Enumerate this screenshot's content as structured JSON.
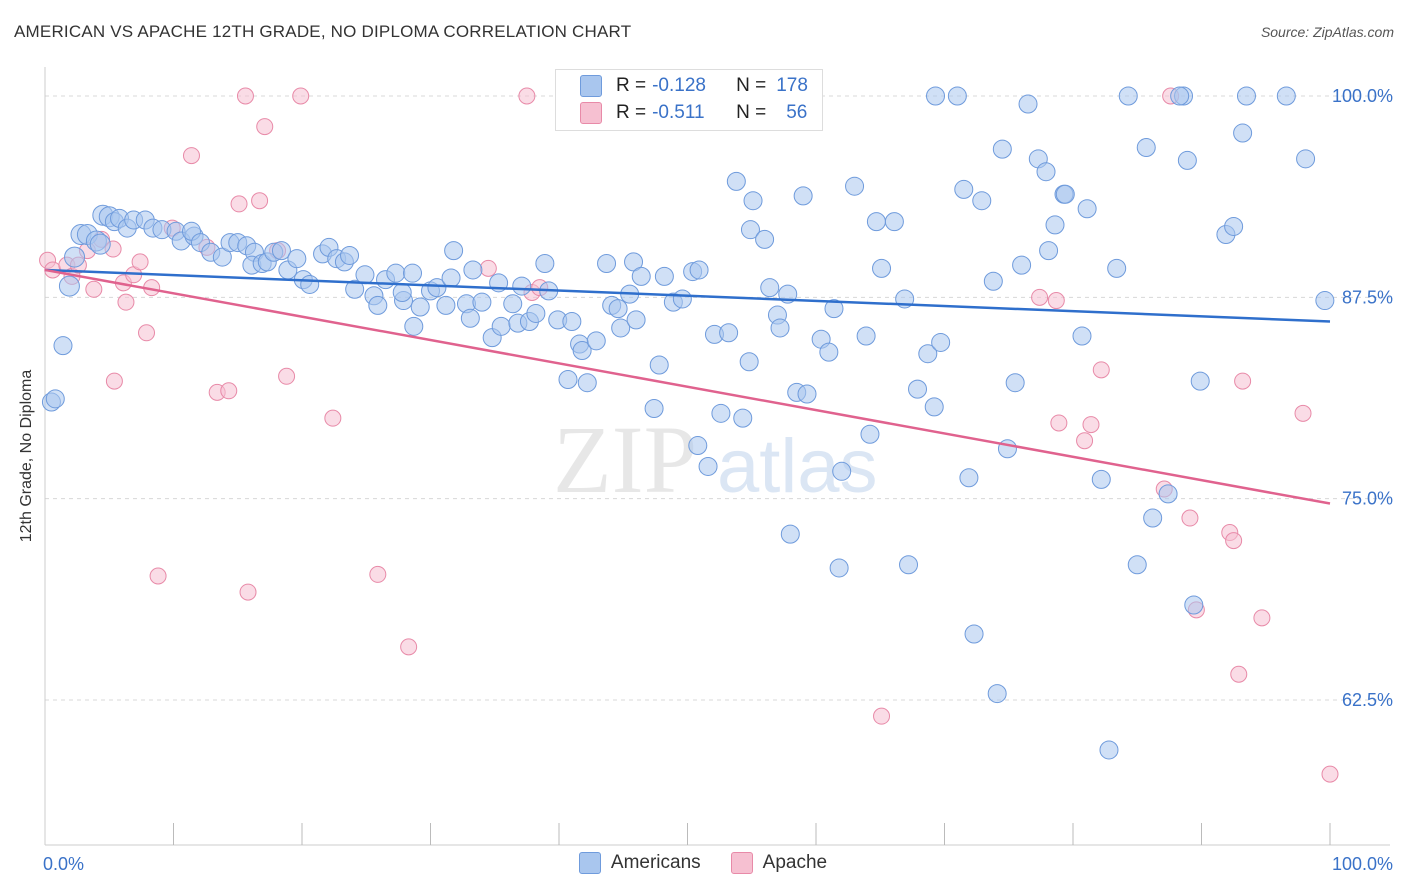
{
  "header": {
    "title": "AMERICAN VS APACHE 12TH GRADE, NO DIPLOMA CORRELATION CHART",
    "source": "Source: ZipAtlas.com"
  },
  "watermark": {
    "zip": "ZIP",
    "atlas": "atlas"
  },
  "legend": {
    "americans": {
      "r_label": "R =",
      "r_value": "-0.128",
      "n_label": "N =",
      "n_value": "178"
    },
    "apache": {
      "r_label": "R =",
      "r_value": "-0.511",
      "n_label": "N =",
      "n_value": "56"
    }
  },
  "bottom_legend": {
    "americans": "Americans",
    "apache": "Apache"
  },
  "colors": {
    "americans_fill": "#a9c6ee",
    "americans_stroke": "#6f9bdc",
    "americans_line": "#2f6fcc",
    "apache_fill": "#f6c0d1",
    "apache_stroke": "#e88aa8",
    "apache_line": "#e0628e",
    "tick_label": "#3a72c8",
    "grid": "#d8d8d8"
  },
  "chart_data": {
    "type": "scatter",
    "title": "AMERICAN VS APACHE 12TH GRADE, NO DIPLOMA CORRELATION CHART",
    "xlabel": "",
    "ylabel": "12th Grade, No Diploma",
    "xlim": [
      0,
      100
    ],
    "ylim": [
      53.5,
      101.8
    ],
    "x_tick_labels": [
      "0.0%",
      "100.0%"
    ],
    "y_ticks": [
      62.5,
      75.0,
      87.5,
      100.0
    ],
    "y_tick_labels": [
      "62.5%",
      "75.0%",
      "87.5%",
      "100.0%"
    ],
    "grid": "horizontal dashed",
    "legend_position": "top-center",
    "series": [
      {
        "name": "Americans",
        "trend": {
          "x": [
            0,
            100
          ],
          "y": [
            89.2,
            86.0
          ]
        },
        "points": [
          [
            0.5,
            81
          ],
          [
            0.8,
            81.2
          ],
          [
            1.4,
            84.5
          ],
          [
            1.9,
            88.2
          ],
          [
            2.3,
            90
          ],
          [
            2.8,
            91.4
          ],
          [
            3.3,
            91.4
          ],
          [
            4,
            91
          ],
          [
            4.3,
            90.8
          ],
          [
            4.5,
            92.6
          ],
          [
            5,
            92.5
          ],
          [
            5.4,
            92.2
          ],
          [
            5.8,
            92.4
          ],
          [
            6.4,
            91.8
          ],
          [
            6.9,
            92.3
          ],
          [
            7.8,
            92.3
          ],
          [
            8.4,
            91.8
          ],
          [
            9.1,
            91.7
          ],
          [
            10.2,
            91.6
          ],
          [
            10.6,
            91
          ],
          [
            11.6,
            91.3
          ],
          [
            11.4,
            91.6
          ],
          [
            12.1,
            90.9
          ],
          [
            12.9,
            90.3
          ],
          [
            13.8,
            90
          ],
          [
            14.4,
            90.9
          ],
          [
            15,
            90.9
          ],
          [
            15.7,
            90.7
          ],
          [
            16.3,
            90.3
          ],
          [
            16.1,
            89.5
          ],
          [
            16.9,
            89.6
          ],
          [
            17.3,
            89.7
          ],
          [
            17.8,
            90.3
          ],
          [
            18.4,
            90.4
          ],
          [
            18.9,
            89.2
          ],
          [
            19.6,
            89.9
          ],
          [
            20.1,
            88.6
          ],
          [
            20.6,
            88.3
          ],
          [
            21.6,
            90.2
          ],
          [
            22.1,
            90.6
          ],
          [
            22.7,
            89.9
          ],
          [
            23.3,
            89.7
          ],
          [
            23.7,
            90.1
          ],
          [
            24.1,
            88
          ],
          [
            24.9,
            88.9
          ],
          [
            25.6,
            87.6
          ],
          [
            25.9,
            87
          ],
          [
            26.5,
            88.6
          ],
          [
            27.3,
            89
          ],
          [
            27.9,
            87.3
          ],
          [
            27.8,
            87.8
          ],
          [
            28.6,
            89
          ],
          [
            28.7,
            85.7
          ],
          [
            29.2,
            86.9
          ],
          [
            30,
            87.9
          ],
          [
            30.5,
            88.1
          ],
          [
            31.6,
            88.7
          ],
          [
            31.2,
            87
          ],
          [
            31.8,
            90.4
          ],
          [
            32.8,
            87.1
          ],
          [
            33.3,
            89.2
          ],
          [
            33.1,
            86.2
          ],
          [
            34,
            87.2
          ],
          [
            34.8,
            85
          ],
          [
            35.3,
            88.4
          ],
          [
            35.5,
            85.7
          ],
          [
            36.4,
            87.1
          ],
          [
            36.8,
            85.9
          ],
          [
            37.1,
            88.2
          ],
          [
            37.7,
            86
          ],
          [
            38.2,
            86.5
          ],
          [
            38.9,
            89.6
          ],
          [
            39.2,
            87.9
          ],
          [
            39.9,
            86.1
          ],
          [
            40.7,
            82.4
          ],
          [
            41,
            86
          ],
          [
            41.6,
            84.6
          ],
          [
            41.8,
            84.2
          ],
          [
            42.2,
            82.2
          ],
          [
            42.9,
            84.8
          ],
          [
            43.7,
            89.6
          ],
          [
            44.1,
            87
          ],
          [
            44.6,
            86.8
          ],
          [
            44.8,
            85.6
          ],
          [
            45.5,
            87.7
          ],
          [
            45.8,
            89.7
          ],
          [
            46,
            86.1
          ],
          [
            46.4,
            88.8
          ],
          [
            47.4,
            80.6
          ],
          [
            47.8,
            83.3
          ],
          [
            48.2,
            88.8
          ],
          [
            48.9,
            87.2
          ],
          [
            49.6,
            87.4
          ],
          [
            50.4,
            89.1
          ],
          [
            50.8,
            78.3
          ],
          [
            50.9,
            89.2
          ],
          [
            51.6,
            77
          ],
          [
            52.1,
            85.2
          ],
          [
            52.6,
            80.3
          ],
          [
            53.2,
            85.3
          ],
          [
            53.8,
            94.7
          ],
          [
            54.3,
            80
          ],
          [
            54.8,
            83.5
          ],
          [
            54.9,
            91.7
          ],
          [
            55.1,
            93.5
          ],
          [
            56,
            91.1
          ],
          [
            56.4,
            88.1
          ],
          [
            57,
            86.4
          ],
          [
            57.2,
            85.6
          ],
          [
            57.8,
            87.7
          ],
          [
            58,
            72.8
          ],
          [
            58.5,
            81.6
          ],
          [
            59,
            93.8
          ],
          [
            59.3,
            81.5
          ],
          [
            60.4,
            84.9
          ],
          [
            61,
            84.1
          ],
          [
            61.4,
            86.8
          ],
          [
            61.8,
            70.7
          ],
          [
            62,
            76.7
          ],
          [
            63,
            94.4
          ],
          [
            63.9,
            85.1
          ],
          [
            64.2,
            79
          ],
          [
            64.7,
            92.2
          ],
          [
            65.1,
            89.3
          ],
          [
            66.1,
            92.2
          ],
          [
            66.9,
            87.4
          ],
          [
            67.2,
            70.9
          ],
          [
            67.9,
            81.8
          ],
          [
            68.7,
            84
          ],
          [
            69.2,
            80.7
          ],
          [
            69.7,
            84.7
          ],
          [
            69.3,
            100
          ],
          [
            71,
            100
          ],
          [
            71.5,
            94.2
          ],
          [
            71.9,
            76.3
          ],
          [
            72.3,
            66.6
          ],
          [
            72.9,
            93.5
          ],
          [
            73.8,
            88.5
          ],
          [
            74.1,
            62.9
          ],
          [
            74.5,
            96.7
          ],
          [
            74.9,
            78.1
          ],
          [
            75.5,
            82.2
          ],
          [
            76,
            89.5
          ],
          [
            76.5,
            99.5
          ],
          [
            77.3,
            96.1
          ],
          [
            77.9,
            95.3
          ],
          [
            78.1,
            90.4
          ],
          [
            78.6,
            92
          ],
          [
            79.3,
            93.9
          ],
          [
            79.4,
            93.9
          ],
          [
            80.7,
            85.1
          ],
          [
            81.1,
            93
          ],
          [
            82.2,
            76.2
          ],
          [
            82.8,
            59.4
          ],
          [
            83.4,
            89.3
          ],
          [
            84.3,
            100
          ],
          [
            85,
            70.9
          ],
          [
            85.7,
            96.8
          ],
          [
            86.2,
            73.8
          ],
          [
            87.4,
            75.3
          ],
          [
            88.6,
            100
          ],
          [
            88.3,
            100
          ],
          [
            88.9,
            96
          ],
          [
            89.4,
            68.4
          ],
          [
            89.9,
            82.3
          ],
          [
            91.9,
            91.4
          ],
          [
            92.5,
            91.9
          ],
          [
            93.2,
            97.7
          ],
          [
            93.5,
            100
          ],
          [
            96.6,
            100
          ],
          [
            98.1,
            96.1
          ],
          [
            99.6,
            87.3
          ]
        ]
      },
      {
        "name": "Apache",
        "trend": {
          "x": [
            0,
            100
          ],
          "y": [
            89.2,
            74.7
          ]
        },
        "points": [
          [
            0.2,
            89.8
          ],
          [
            0.6,
            89.2
          ],
          [
            1.7,
            89.5
          ],
          [
            2.1,
            88.8
          ],
          [
            2.6,
            89.5
          ],
          [
            3.3,
            90.4
          ],
          [
            3.8,
            88
          ],
          [
            4.4,
            91.1
          ],
          [
            5.3,
            90.5
          ],
          [
            5.4,
            82.3
          ],
          [
            6.1,
            88.4
          ],
          [
            6.3,
            87.2
          ],
          [
            6.9,
            88.9
          ],
          [
            7.4,
            89.7
          ],
          [
            7.9,
            85.3
          ],
          [
            8.3,
            88.1
          ],
          [
            8.8,
            70.2
          ],
          [
            9.9,
            91.8
          ],
          [
            11.4,
            96.3
          ],
          [
            12.6,
            90.6
          ],
          [
            13.4,
            81.6
          ],
          [
            14.3,
            81.7
          ],
          [
            15.1,
            93.3
          ],
          [
            15.6,
            100
          ],
          [
            15.8,
            69.2
          ],
          [
            16.7,
            93.5
          ],
          [
            17.1,
            98.1
          ],
          [
            18.1,
            90.4
          ],
          [
            18.8,
            82.6
          ],
          [
            19.9,
            100
          ],
          [
            22.4,
            80
          ],
          [
            25.9,
            70.3
          ],
          [
            28.3,
            65.8
          ],
          [
            34.5,
            89.3
          ],
          [
            37.5,
            100
          ],
          [
            37.9,
            87.8
          ],
          [
            38.5,
            88.1
          ],
          [
            65.1,
            61.5
          ],
          [
            77.4,
            87.5
          ],
          [
            78.7,
            87.3
          ],
          [
            78.9,
            79.7
          ],
          [
            80.9,
            78.6
          ],
          [
            81.4,
            79.6
          ],
          [
            82.2,
            83
          ],
          [
            87.1,
            75.6
          ],
          [
            87.6,
            100
          ],
          [
            89.1,
            73.8
          ],
          [
            89.6,
            68.1
          ],
          [
            92.2,
            72.9
          ],
          [
            92.5,
            72.4
          ],
          [
            92.9,
            64.1
          ],
          [
            93.2,
            82.3
          ],
          [
            94.7,
            67.6
          ],
          [
            97.9,
            80.3
          ],
          [
            100,
            57.9
          ]
        ]
      }
    ]
  }
}
